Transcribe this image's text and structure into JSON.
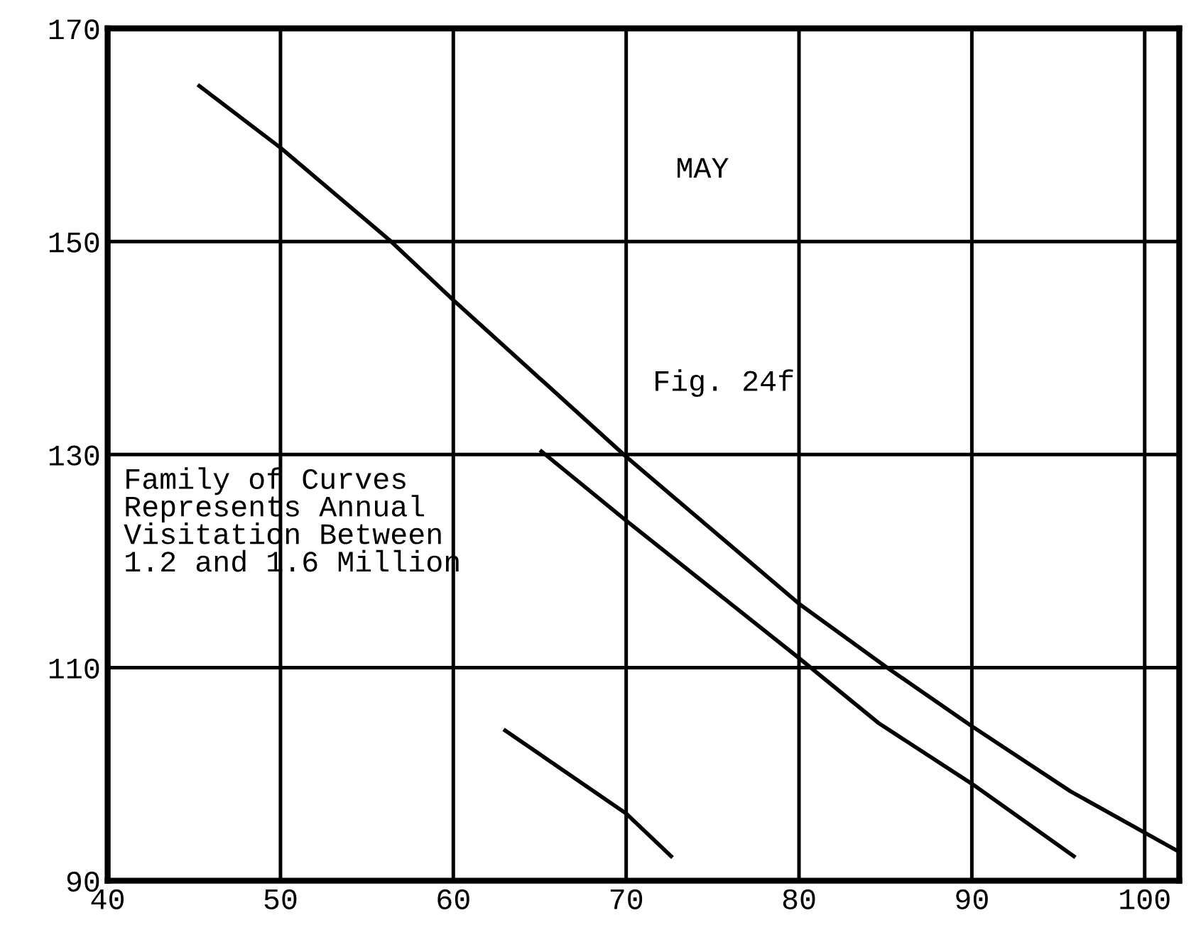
{
  "chart_data": {
    "type": "line",
    "xlim": [
      40,
      102
    ],
    "xticks": [
      40,
      50,
      60,
      70,
      80,
      90,
      100
    ],
    "ylim": [
      90,
      170
    ],
    "yticks": [
      90,
      110,
      130,
      150,
      170
    ],
    "grid": true,
    "line_style": "solid",
    "marker": "none",
    "annotations": [
      "MAY",
      "Fig. 24f",
      "Family of Curves\nRepresents Annual\nVisitation Between\n1.2 and 1.6 Million"
    ],
    "series": [
      {
        "color": "#000000",
        "x": [
          45.3,
          50,
          56.4,
          60,
          70,
          80,
          85.1,
          90,
          95.7,
          102
        ],
        "values": [
          164.6,
          158.8,
          150,
          144.5,
          129.8,
          116,
          110,
          104.5,
          98.4,
          92.7
        ]
      },
      {
        "color": "#000000",
        "x": [
          65.1,
          70,
          80,
          84.6,
          90,
          95.9
        ],
        "values": [
          130.3,
          123.8,
          110.9,
          104.8,
          99.1,
          92.3
        ]
      },
      {
        "color": "#000000",
        "x": [
          63,
          70,
          72.6
        ],
        "values": [
          104.1,
          96.3,
          92.3
        ]
      }
    ]
  }
}
